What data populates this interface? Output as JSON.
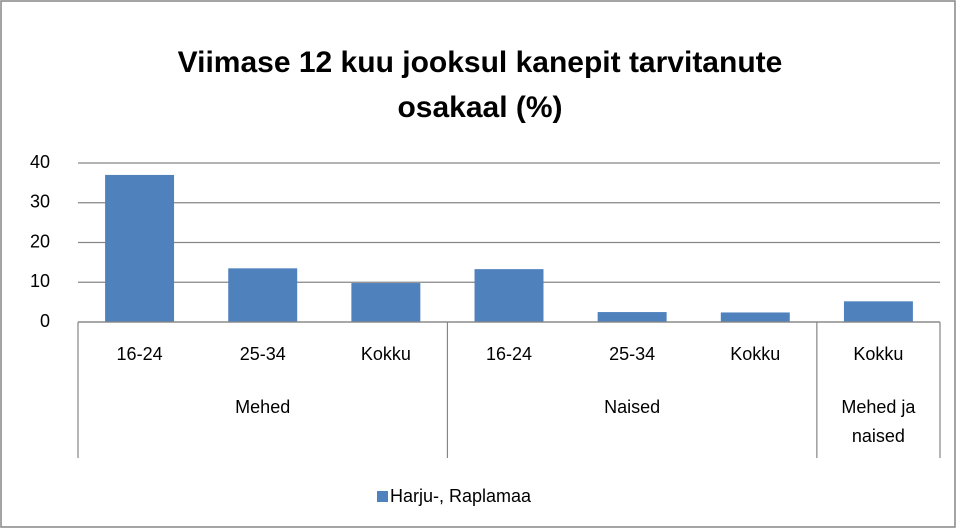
{
  "chart_data": {
    "type": "bar",
    "title": "Viimase 12 kuu jooksul kanepit tarvitanute osakaal (%)",
    "groups": [
      {
        "name": "Mehed",
        "categories": [
          "16-24",
          "25-34",
          "Kokku"
        ]
      },
      {
        "name": "Naised",
        "categories": [
          "16-24",
          "25-34",
          "Kokku"
        ]
      },
      {
        "name": "Mehed ja naised",
        "categories": [
          "Kokku"
        ]
      }
    ],
    "series": [
      {
        "name": "Harju-, Raplamaa",
        "color": "#4f81bd",
        "values": [
          37,
          13.5,
          9.8,
          13.3,
          2.5,
          2.4,
          5.2
        ]
      }
    ],
    "ylim": [
      0,
      40
    ],
    "yticks": [
      0,
      10,
      20,
      30,
      40
    ],
    "grid": true,
    "legend": "bottom"
  }
}
